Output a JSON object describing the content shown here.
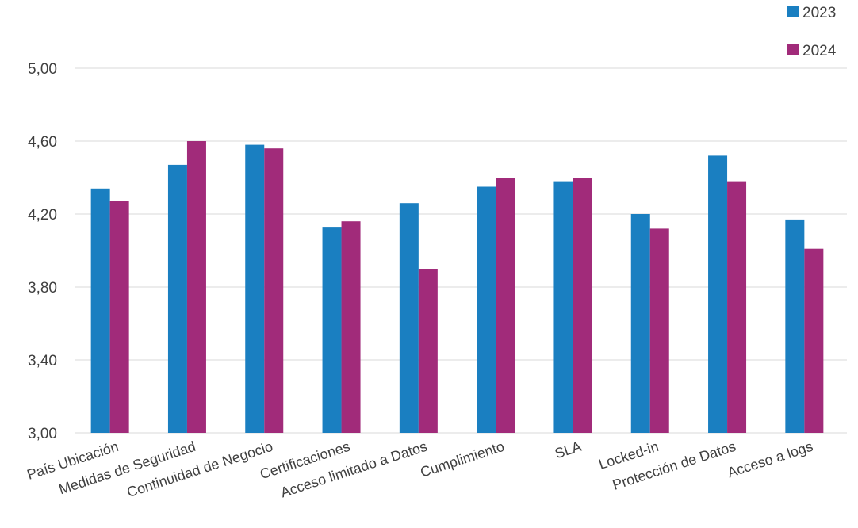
{
  "chart_data": {
    "type": "bar",
    "title": "",
    "xlabel": "",
    "ylabel": "",
    "categories": [
      "País Ubicación",
      "Medidas de Seguridad",
      "Continuidad de Negocio",
      "Certificaciones",
      "Acceso limitado a Datos",
      "Cumplimiento",
      "SLA",
      "Locked-in",
      "Protección de Datos",
      "Acceso a logs"
    ],
    "series": [
      {
        "name": "2023",
        "color": "#1a7fc1",
        "values": [
          4.34,
          4.47,
          4.58,
          4.13,
          4.26,
          4.35,
          4.38,
          4.2,
          4.52,
          4.17
        ]
      },
      {
        "name": "2024",
        "color": "#a12b7a",
        "values": [
          4.27,
          4.6,
          4.56,
          4.16,
          3.9,
          4.4,
          4.4,
          4.12,
          4.38,
          4.01
        ]
      }
    ],
    "ylim": [
      3.0,
      5.0
    ],
    "yticks": [
      3.0,
      3.4,
      3.8,
      4.2,
      4.6,
      5.0
    ],
    "ytick_labels": [
      "3,00",
      "3,40",
      "3,80",
      "4,20",
      "4,60",
      "5,00"
    ],
    "grid": true,
    "legend": "top-right"
  }
}
